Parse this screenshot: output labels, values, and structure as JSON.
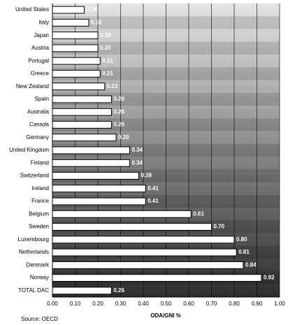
{
  "chart_data": {
    "type": "bar",
    "orientation": "horizontal",
    "categories": [
      "United States",
      "Italy",
      "Japan",
      "Austria",
      "Portugal",
      "Greece",
      "New Zealand",
      "Spain",
      "Australia",
      "Canada",
      "Germany",
      "United Kingdom",
      "Finland",
      "Switzerland",
      "Ireland",
      "France",
      "Belgium",
      "Sweden",
      "Luxembourg",
      "Netherlands",
      "Denmark",
      "Norway",
      "TOTAL DAC"
    ],
    "values": [
      0.14,
      0.16,
      0.2,
      0.2,
      0.21,
      0.21,
      0.23,
      0.26,
      0.26,
      0.26,
      0.28,
      0.34,
      0.34,
      0.38,
      0.41,
      0.41,
      0.61,
      0.7,
      0.8,
      0.81,
      0.84,
      0.92,
      0.26
    ],
    "value_labels": [
      "0.14",
      "0.16",
      "0.20",
      "0.20",
      "0.21",
      "0.21",
      "0.23",
      "0.26",
      "0.26",
      "0.26",
      "0.28",
      "0.34",
      "0.34",
      "0.38",
      "0.41",
      "0.41",
      "0.61",
      "0.70",
      "0.80",
      "0.81",
      "0.84",
      "0.92",
      "0.26"
    ],
    "color": "#ffffff",
    "xlim": [
      0,
      1
    ],
    "xticks": [
      {
        "value": 0,
        "label": "0.00"
      },
      {
        "value": 0.1,
        "label": "0.10"
      },
      {
        "value": 0.2,
        "label": "0.20"
      },
      {
        "value": 0.3,
        "label": "0.30"
      },
      {
        "value": 0.4,
        "label": "0.40"
      },
      {
        "value": 0.5,
        "label": "0.50"
      },
      {
        "value": 0.6,
        "label": "0.60"
      },
      {
        "value": 0.7,
        "label": "0.70"
      },
      {
        "value": 0.8,
        "label": "0.80"
      },
      {
        "value": 0.9,
        "label": "0.90"
      },
      {
        "value": 1,
        "label": "1.00"
      }
    ],
    "x_label": "ODA/GNI %",
    "source": "Source: OECD",
    "grid": true
  }
}
